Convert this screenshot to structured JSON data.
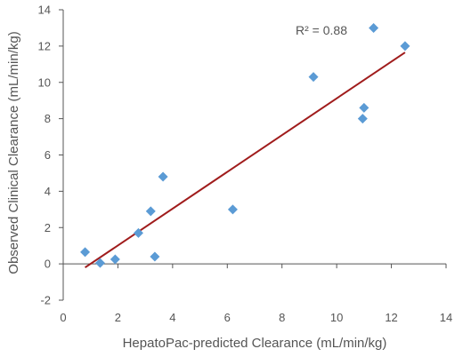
{
  "chart_data": {
    "type": "scatter",
    "xlabel": "HepatoPac-predicted Clearance (mL/min/kg)",
    "ylabel": "Observed Clinical Clearance (mL/min/kg)",
    "xlim": [
      0,
      14
    ],
    "ylim": [
      -2,
      14
    ],
    "xticks": [
      "0",
      "2",
      "4",
      "6",
      "8",
      "10",
      "12",
      "14"
    ],
    "yticks": [
      "-2",
      "0",
      "2",
      "4",
      "6",
      "8",
      "10",
      "12",
      "14"
    ],
    "xtick_values": [
      0,
      2,
      4,
      6,
      8,
      10,
      12,
      14
    ],
    "ytick_values": [
      -2,
      0,
      2,
      4,
      6,
      8,
      10,
      12,
      14
    ],
    "points": [
      {
        "x": 0.8,
        "y": 0.65
      },
      {
        "x": 1.35,
        "y": 0.05
      },
      {
        "x": 1.9,
        "y": 0.25
      },
      {
        "x": 2.75,
        "y": 1.7
      },
      {
        "x": 3.2,
        "y": 2.9
      },
      {
        "x": 3.35,
        "y": 0.4
      },
      {
        "x": 3.65,
        "y": 4.8
      },
      {
        "x": 6.2,
        "y": 3.0
      },
      {
        "x": 9.15,
        "y": 10.3
      },
      {
        "x": 10.95,
        "y": 8.0
      },
      {
        "x": 11.0,
        "y": 8.6
      },
      {
        "x": 11.35,
        "y": 13.0
      },
      {
        "x": 12.5,
        "y": 12.0
      }
    ],
    "trendline": {
      "x1": 0.8,
      "y1": -0.2,
      "x2": 12.5,
      "y2": 11.65
    },
    "annotation": "R² = 0.88",
    "colors": {
      "marker": "#5b9bd5",
      "trendline": "#a01c1c",
      "axis": "#555555"
    }
  }
}
